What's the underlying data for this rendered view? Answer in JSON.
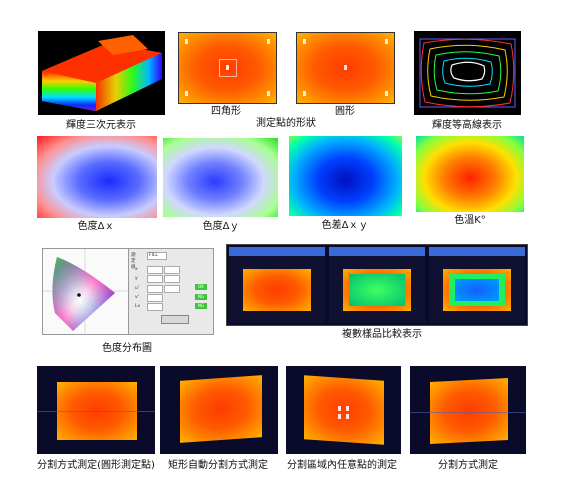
{
  "captions": {
    "luminance_3d": "輝度三次元表示",
    "square": "四角形",
    "circle": "圓形",
    "measurement_point_shape": "測定點的形狀",
    "luminance_contour": "輝度等高線表示",
    "chroma_dx": "色度Δｘ",
    "chroma_dy": "色度Δｙ",
    "color_diff_dxy": "色差Δｘｙ",
    "color_temp": "色溫K°",
    "chroma_distribution": "色度分布圖",
    "multi_sample_compare": "複數樣品比較表示",
    "split_circle_points": "分割方式測定(圓形測定點)",
    "rect_auto_split": "矩形自動分割方式測定",
    "split_arbitrary_points": "分割區域內任意點的測定",
    "split_method": "分割方式測定"
  },
  "panel": {
    "field_labels": [
      "x",
      "y",
      "u'",
      "v'",
      "Lv"
    ],
    "button_labels": [
      "OK",
      "NG",
      "NG"
    ],
    "dropdown_value": "FILL"
  },
  "colors": {
    "thermal_core": "#ff3c00",
    "thermal_edge": "#ffb300",
    "window_title": "#3a6ad8",
    "dark_bg": "#0a0a2a"
  }
}
